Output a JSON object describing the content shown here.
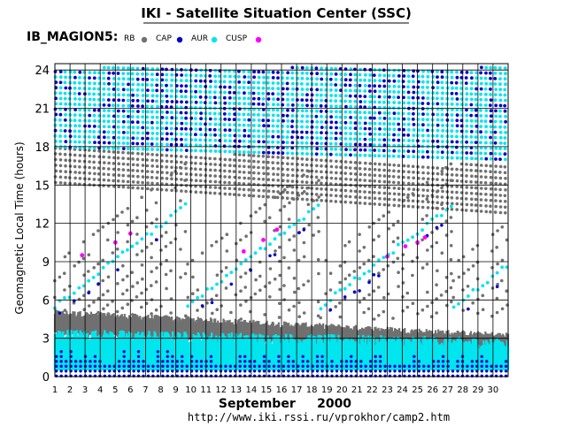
{
  "header": {
    "title": "IKI - Satellite Situation Center (SSC)",
    "satellite": "IB_MAGION5:",
    "url": "http://www.iki.rssi.ru/vprokhor/camp2.htm"
  },
  "colors": {
    "RB": "#707070",
    "CAP": "#0000cc",
    "AUR": "#00e5ee",
    "CUSP": "#ff00ff",
    "grid": "#000000",
    "background": "#ffffff"
  },
  "chart_data": {
    "type": "scatter",
    "title": "IKI - Satellite Situation Center (SSC)",
    "ylabel": "Geomagnetic  Local  Time  (hours)",
    "xlabel": "September     2000",
    "xlim": [
      1,
      31
    ],
    "ylim": [
      0,
      24.5
    ],
    "yticks": [
      0,
      3,
      6,
      9,
      12,
      15,
      18,
      21,
      24
    ],
    "xticks": [
      1,
      2,
      3,
      4,
      5,
      6,
      7,
      8,
      9,
      10,
      11,
      12,
      13,
      14,
      15,
      16,
      17,
      18,
      19,
      20,
      21,
      22,
      23,
      24,
      25,
      26,
      27,
      28,
      29,
      30
    ],
    "grid": true,
    "legend_position": "top-left",
    "series": [
      {
        "name": "RB",
        "description": "radiation belts",
        "color": "#707070",
        "bands": [
          {
            "x": [
              1,
              31
            ],
            "y_low_start": 3.4,
            "y_low_end": 1.8,
            "y_high_start": 5.0,
            "y_high_end": 3.2,
            "density": "continuous"
          },
          {
            "x": [
              1,
              31
            ],
            "y_low_start": 15.2,
            "y_low_end": 12.8,
            "y_high_start": 18.0,
            "y_high_end": 16.5,
            "density": "vertical strokes per orbit"
          }
        ]
      },
      {
        "name": "CAP",
        "description": "polar cap",
        "color": "#0000cc",
        "bands": [
          {
            "x": [
              1,
              31
            ],
            "y_low_start": 0.0,
            "y_low_end": 0.0,
            "y_high_start": 2.0,
            "y_high_end": 1.5,
            "density": "vertical strokes per orbit"
          },
          {
            "x": [
              1,
              31
            ],
            "y_low_start": 18.0,
            "y_low_end": 17.0,
            "y_high_start": 24.2,
            "y_high_end": 24.2,
            "density": "vertical strokes per orbit"
          }
        ]
      },
      {
        "name": "AUR",
        "description": "auroral zone",
        "color": "#00e5ee",
        "bands": [
          {
            "x": [
              1,
              31
            ],
            "y_low_start": 0.5,
            "y_low_end": 0.5,
            "y_high_start": 3.3,
            "y_high_end": 2.6,
            "density": "dense strip"
          },
          {
            "x": [
              1,
              31
            ],
            "y_low_start": 18.0,
            "y_low_end": 17.0,
            "y_high_start": 24.2,
            "y_high_end": 24.2,
            "density": "vertical strokes per orbit"
          }
        ]
      },
      {
        "name": "CUSP",
        "description": "cusp crossings",
        "color": "#ff00ff",
        "points": [
          [
            2.8,
            9.5
          ],
          [
            5.0,
            10.5
          ],
          [
            6.0,
            11.2
          ],
          [
            13.5,
            9.8
          ],
          [
            14.8,
            10.7
          ],
          [
            15.7,
            11.5
          ],
          [
            23.0,
            9.4
          ],
          [
            24.2,
            10.2
          ],
          [
            25.0,
            10.5
          ],
          [
            25.5,
            10.9
          ]
        ]
      }
    ],
    "diagonal_tracks": {
      "description": "orbit tracks drifting upward in local time",
      "periods_days": 8.8,
      "y_from": 5.5,
      "y_to": 13.5
    }
  },
  "legend": [
    {
      "label": "RB",
      "color": "#707070"
    },
    {
      "label": "CAP",
      "color": "#0000cc"
    },
    {
      "label": "AUR",
      "color": "#00e5ee"
    },
    {
      "label": "CUSP",
      "color": "#ff00ff"
    }
  ]
}
